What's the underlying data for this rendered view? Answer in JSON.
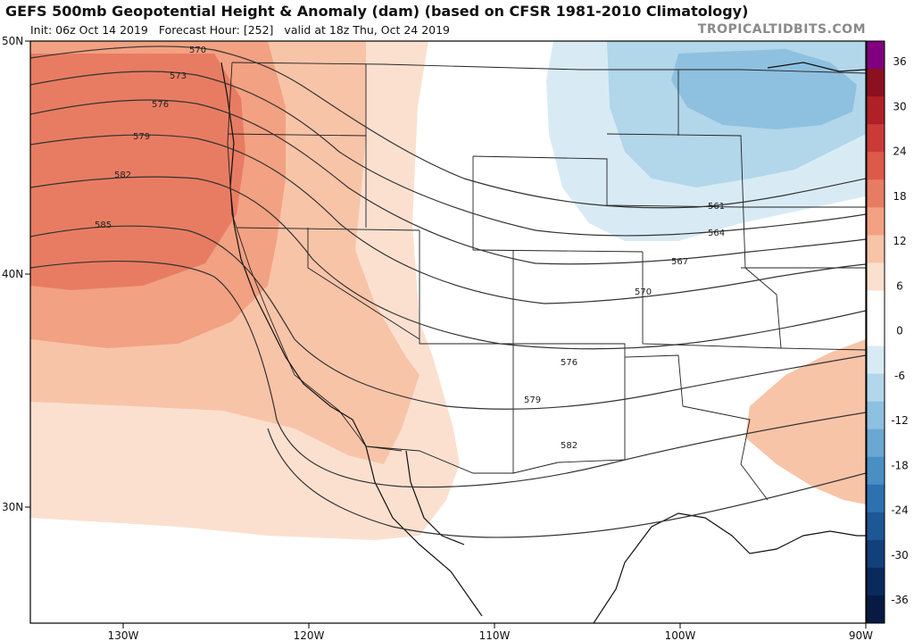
{
  "header": {
    "title": "GEFS 500mb Geopotential Height & Anomaly (dam) (based on CFSR 1981-2010 Climatology)",
    "init": "Init: 06z Oct 14 2019",
    "forecast_hour": "Forecast Hour: [252]",
    "valid": "valid at 18z Thu, Oct 24 2019",
    "brand": "TROPICALTIDBITS.COM"
  },
  "axes": {
    "lat_labels": [
      "50N",
      "40N",
      "30N"
    ],
    "lon_labels": [
      "130W",
      "120W",
      "110W",
      "100W",
      "90W"
    ]
  },
  "colorbar": {
    "labels": [
      "36",
      "30",
      "24",
      "18",
      "12",
      "6",
      "0",
      "-6",
      "-12",
      "-18",
      "-24",
      "-30",
      "-36"
    ],
    "colors": [
      "#800080",
      "#8b1020",
      "#b02028",
      "#cc3a38",
      "#dd5a48",
      "#e87c62",
      "#f2a182",
      "#f8c4a8",
      "#fbe0d0",
      "#ffffff",
      "#ffffff",
      "#d8ebf5",
      "#b2d6ea",
      "#8ec0df",
      "#6aa8d2",
      "#4a8fc4",
      "#2c72b0",
      "#1c5896",
      "#12407a",
      "#0a2a5e",
      "#061a42"
    ]
  },
  "contours": {
    "labels": [
      "570",
      "573",
      "576",
      "579",
      "582",
      "585",
      "561",
      "564",
      "567",
      "570",
      "576",
      "579",
      "582"
    ]
  }
}
